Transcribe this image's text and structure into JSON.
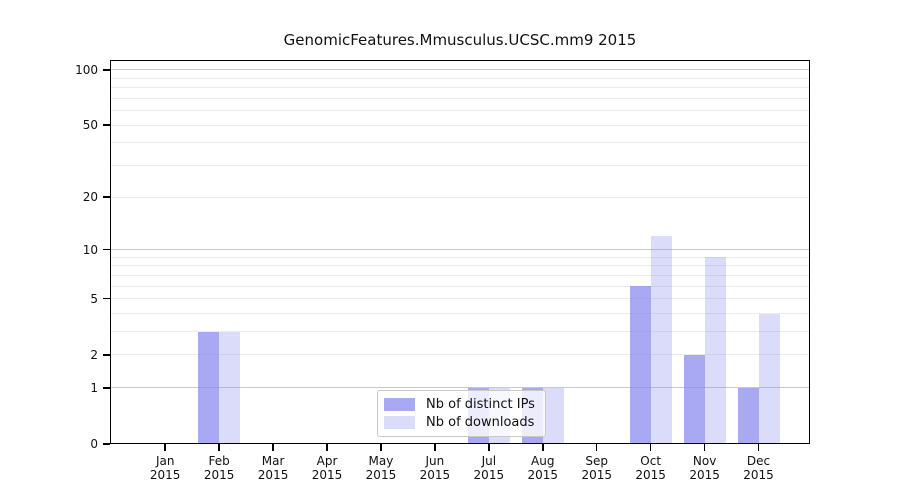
{
  "chart_data": {
    "type": "bar",
    "title": "GenomicFeatures.Mmusculus.UCSC.mm9 2015",
    "categories": [
      "Jan 2015",
      "Feb 2015",
      "Mar 2015",
      "Apr 2015",
      "May 2015",
      "Jun 2015",
      "Jul 2015",
      "Aug 2015",
      "Sep 2015",
      "Oct 2015",
      "Nov 2015",
      "Dec 2015"
    ],
    "series": [
      {
        "name": "Nb of distinct IPs",
        "color": "#8888ee",
        "opacity": 0.72,
        "values": [
          0,
          3,
          0,
          0,
          0,
          0,
          1,
          1,
          0,
          6,
          2,
          1
        ]
      },
      {
        "name": "Nb of downloads",
        "color": "#8888ee",
        "opacity": 0.3,
        "values": [
          0,
          3,
          0,
          0,
          0,
          0,
          1,
          1,
          0,
          12,
          9,
          4
        ]
      }
    ],
    "yscale": "log10(value+1)",
    "yticks": [
      100,
      50,
      20,
      10,
      5,
      2,
      1,
      0
    ],
    "ytick_labels": [
      "100",
      "50",
      "20",
      "10",
      "5",
      "2",
      "1",
      "0"
    ],
    "minor_gridlines": [
      2,
      3,
      4,
      5,
      6,
      7,
      8,
      9,
      20,
      30,
      40,
      50,
      60,
      70,
      80,
      90
    ],
    "major_gridlines": [
      1,
      10,
      100
    ],
    "ylim": [
      0,
      113
    ],
    "grid": "horizontal",
    "legend_position": "inside-bottom-center"
  }
}
